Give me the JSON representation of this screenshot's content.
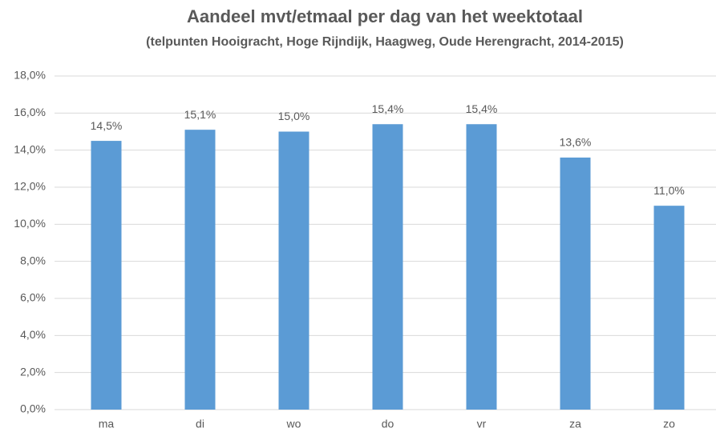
{
  "chart_data": {
    "type": "bar",
    "title": "Aandeel mvt/etmaal per dag van het weektotaal",
    "subtitle": "(telpunten Hooigracht, Hoge Rijndijk, Haagweg, Oude Herengracht, 2014-2015)",
    "categories": [
      "ma",
      "di",
      "wo",
      "do",
      "vr",
      "za",
      "zo"
    ],
    "values": [
      14.5,
      15.1,
      15.0,
      15.4,
      15.4,
      13.6,
      11.0
    ],
    "value_labels": [
      "14,5%",
      "15,1%",
      "15,0%",
      "15,4%",
      "15,4%",
      "13,6%",
      "11,0%"
    ],
    "color": "#5b9bd5",
    "ylim": [
      0,
      18
    ],
    "yticks": [
      {
        "value": 0,
        "label": "0,0%"
      },
      {
        "value": 2,
        "label": "2,0%"
      },
      {
        "value": 4,
        "label": "4,0%"
      },
      {
        "value": 6,
        "label": "6,0%"
      },
      {
        "value": 8,
        "label": "8,0%"
      },
      {
        "value": 10,
        "label": "10,0%"
      },
      {
        "value": 12,
        "label": "12,0%"
      },
      {
        "value": 14,
        "label": "14,0%"
      },
      {
        "value": 16,
        "label": "16,0%"
      },
      {
        "value": 18,
        "label": "18,0%"
      }
    ],
    "grid": true
  }
}
